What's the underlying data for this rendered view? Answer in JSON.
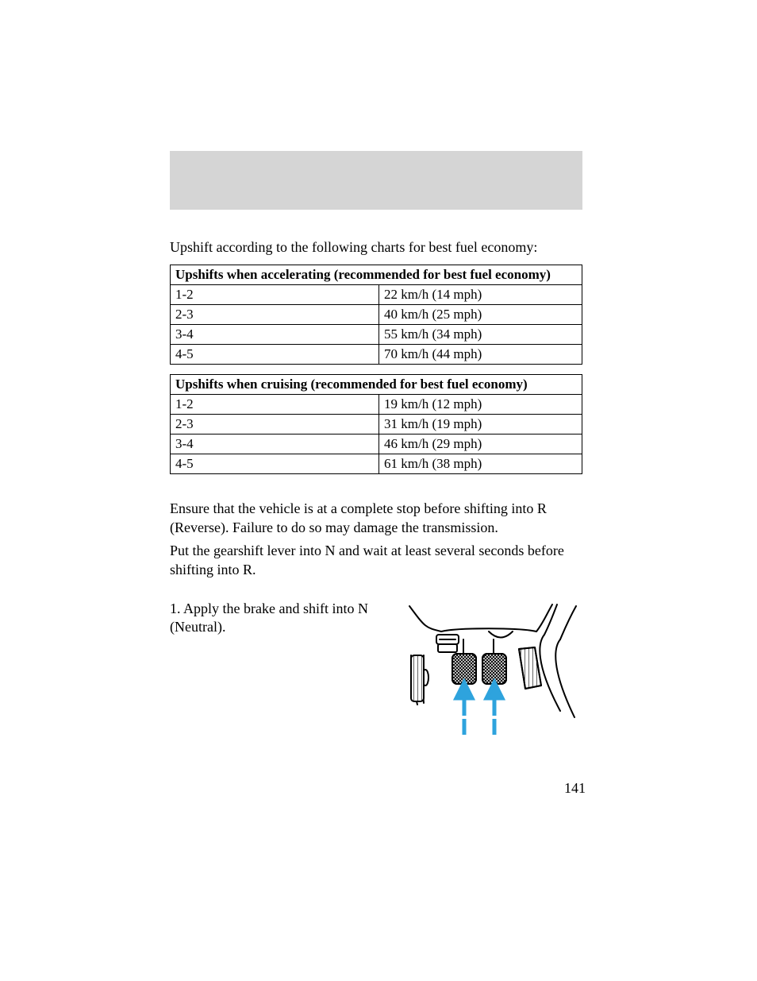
{
  "intro": "Upshift according to the following charts for best fuel economy:",
  "table1": {
    "header": "Upshifts when accelerating (recommended for best fuel economy)",
    "rows": [
      {
        "shift": "1-2",
        "speed": "22 km/h (14 mph)"
      },
      {
        "shift": "2-3",
        "speed": "40 km/h (25 mph)"
      },
      {
        "shift": "3-4",
        "speed": "55 km/h (34 mph)"
      },
      {
        "shift": "4-5",
        "speed": "70 km/h (44 mph)"
      }
    ]
  },
  "table2": {
    "header": "Upshifts when cruising (recommended for best fuel economy)",
    "rows": [
      {
        "shift": "1-2",
        "speed": "19 km/h (12 mph)"
      },
      {
        "shift": "2-3",
        "speed": "31 km/h (19 mph)"
      },
      {
        "shift": "3-4",
        "speed": "46 km/h (29 mph)"
      },
      {
        "shift": "4-5",
        "speed": "61 km/h (38 mph)"
      }
    ]
  },
  "para1": "Ensure that the vehicle is at a complete stop before shifting into R (Reverse). Failure to do so may damage the transmission.",
  "para2": "Put the gearshift lever into N and wait at least several seconds before shifting into R.",
  "step1": "1. Apply the brake and shift into N (Neutral).",
  "pageNumber": "141",
  "diagram": {
    "arrow_color": "#2ea3dd",
    "stroke_color": "#000000",
    "background": "#ffffff"
  }
}
